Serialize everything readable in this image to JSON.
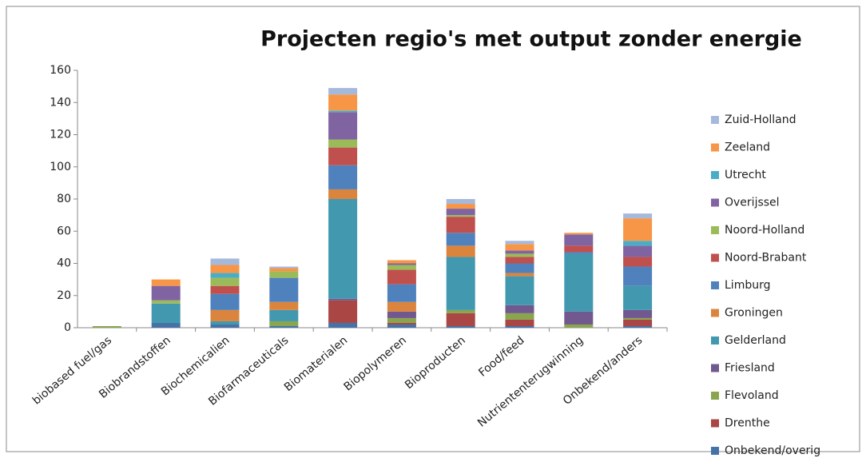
{
  "chart_data": {
    "type": "bar",
    "stacked": true,
    "title": "Projecten regio's met output zonder energie",
    "categories": [
      "biobased fuel/gas",
      "Biobrandstoffen",
      "Biochemicalien",
      "Biofarmaceuticals",
      "Biomaterialen",
      "Biopolymeren",
      "Bioproducten",
      "Food/feed",
      "Nutriententerugwinning",
      "Onbekend/anders"
    ],
    "series": [
      {
        "name": "Onbekend/overig",
        "color": "#4572a7",
        "values": [
          0,
          3,
          2,
          1,
          3,
          2,
          1,
          1,
          0,
          1
        ]
      },
      {
        "name": "Drenthe",
        "color": "#aa4643",
        "values": [
          0,
          0,
          0,
          0,
          14,
          1,
          8,
          4,
          0,
          4
        ]
      },
      {
        "name": "Flevoland",
        "color": "#89a54e",
        "values": [
          1,
          0,
          0,
          3,
          0,
          3,
          2,
          4,
          2,
          1
        ]
      },
      {
        "name": "Friesland",
        "color": "#71588f",
        "values": [
          0,
          0,
          0,
          0,
          1,
          4,
          0,
          5,
          8,
          5
        ]
      },
      {
        "name": "Gelderland",
        "color": "#4198af",
        "values": [
          0,
          12,
          2,
          7,
          62,
          0,
          33,
          18,
          36,
          15
        ]
      },
      {
        "name": "Groningen",
        "color": "#db843d",
        "values": [
          0,
          0,
          7,
          5,
          6,
          6,
          7,
          2,
          0,
          0
        ]
      },
      {
        "name": "Limburg",
        "color": "#4f81bd",
        "values": [
          0,
          0,
          10,
          15,
          15,
          11,
          8,
          6,
          1,
          12
        ]
      },
      {
        "name": "Noord-Brabant",
        "color": "#c0504d",
        "values": [
          0,
          0,
          5,
          0,
          11,
          9,
          10,
          4,
          4,
          6
        ]
      },
      {
        "name": "Noord-Holland",
        "color": "#9bbb59",
        "values": [
          0,
          2,
          5,
          4,
          5,
          3,
          1,
          2,
          0,
          0
        ]
      },
      {
        "name": "Overijssel",
        "color": "#8064a2",
        "values": [
          0,
          9,
          0,
          0,
          17,
          1,
          4,
          2,
          7,
          7
        ]
      },
      {
        "name": "Utrecht",
        "color": "#4bacc6",
        "values": [
          0,
          0,
          3,
          0,
          1,
          0,
          0,
          0,
          0,
          3
        ]
      },
      {
        "name": "Zeeland",
        "color": "#f79646",
        "values": [
          0,
          4,
          5,
          2,
          10,
          2,
          3,
          4,
          1,
          14
        ]
      },
      {
        "name": "Zuid-Holland",
        "color": "#a5b9dc",
        "values": [
          0,
          0,
          4,
          1,
          4,
          0,
          3,
          2,
          0,
          3
        ]
      }
    ],
    "ylim": [
      0,
      160
    ],
    "yticks": [
      0,
      20,
      40,
      60,
      80,
      100,
      120,
      140,
      160
    ],
    "grid": false,
    "legend": "right"
  }
}
